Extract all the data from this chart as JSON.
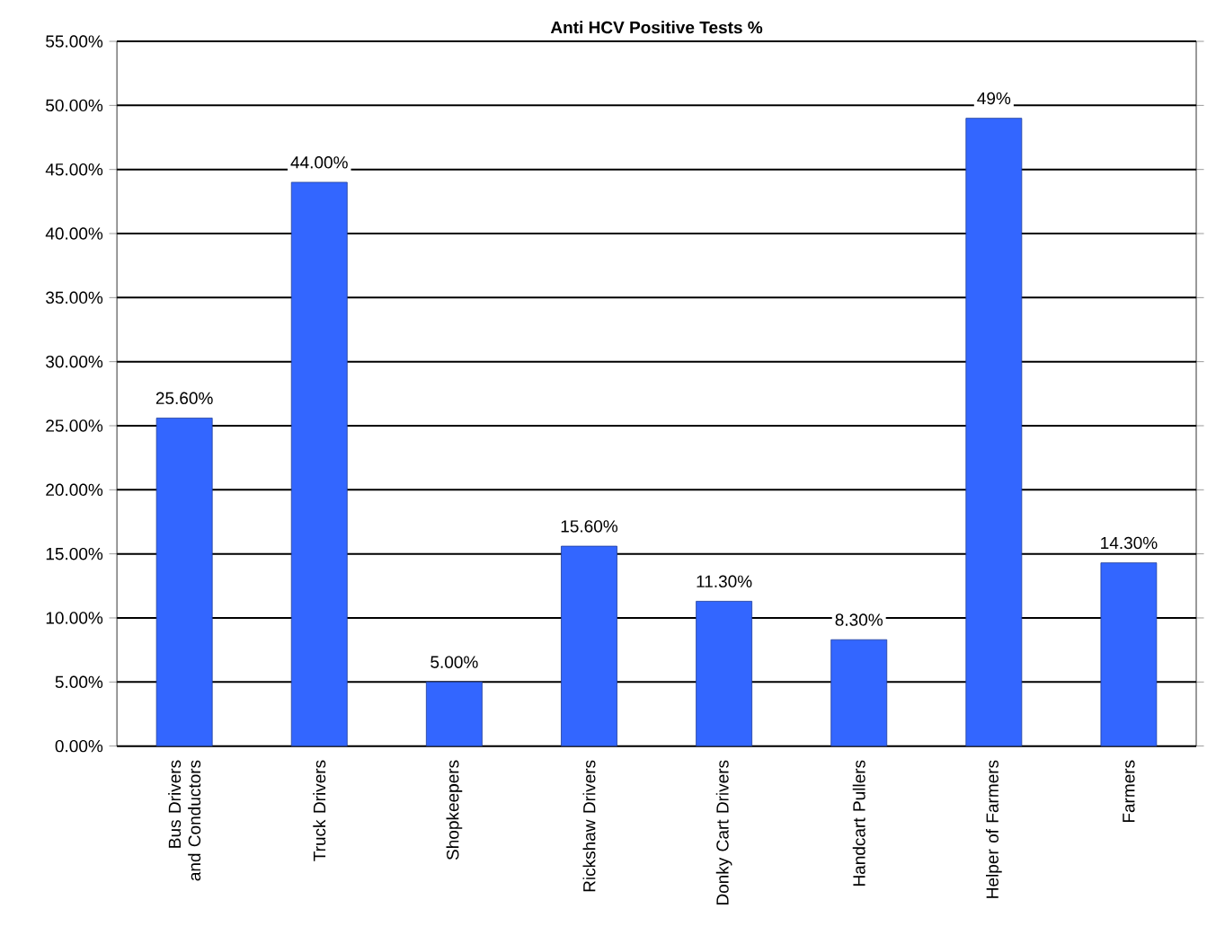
{
  "chart_data": {
    "type": "bar",
    "title": "Anti HCV Positive Tests %",
    "categories": [
      "Bus Drivers and Conductors",
      "Truck Drivers",
      "Shopkeepers",
      "Rickshaw Drivers",
      "Donky Cart Drivers",
      "Handcart Pullers",
      "Helper of Farmers",
      "Farmers"
    ],
    "values": [
      25.6,
      44,
      5,
      15.6,
      11.3,
      8.3,
      49,
      14.3
    ],
    "value_labels": [
      "25.60%",
      "44.00%",
      "5.00%",
      "15.60%",
      "11.30%",
      "8.30%",
      "49%",
      "14.30%"
    ],
    "color": "#3366ff",
    "ylim": [
      0,
      55
    ],
    "yticks": [
      {
        "value": 0,
        "label": "0.00%"
      },
      {
        "value": 5,
        "label": "5.00%"
      },
      {
        "value": 10,
        "label": "10.00%"
      },
      {
        "value": 15,
        "label": "15.00%"
      },
      {
        "value": 20,
        "label": "20.00%"
      },
      {
        "value": 25,
        "label": "25.00%"
      },
      {
        "value": 30,
        "label": "30.00%"
      },
      {
        "value": 35,
        "label": "35.00%"
      },
      {
        "value": 40,
        "label": "40.00%"
      },
      {
        "value": 45,
        "label": "45.00%"
      },
      {
        "value": 50,
        "label": "50.00%"
      },
      {
        "value": 55,
        "label": "55.00%"
      }
    ],
    "grid": "y"
  }
}
